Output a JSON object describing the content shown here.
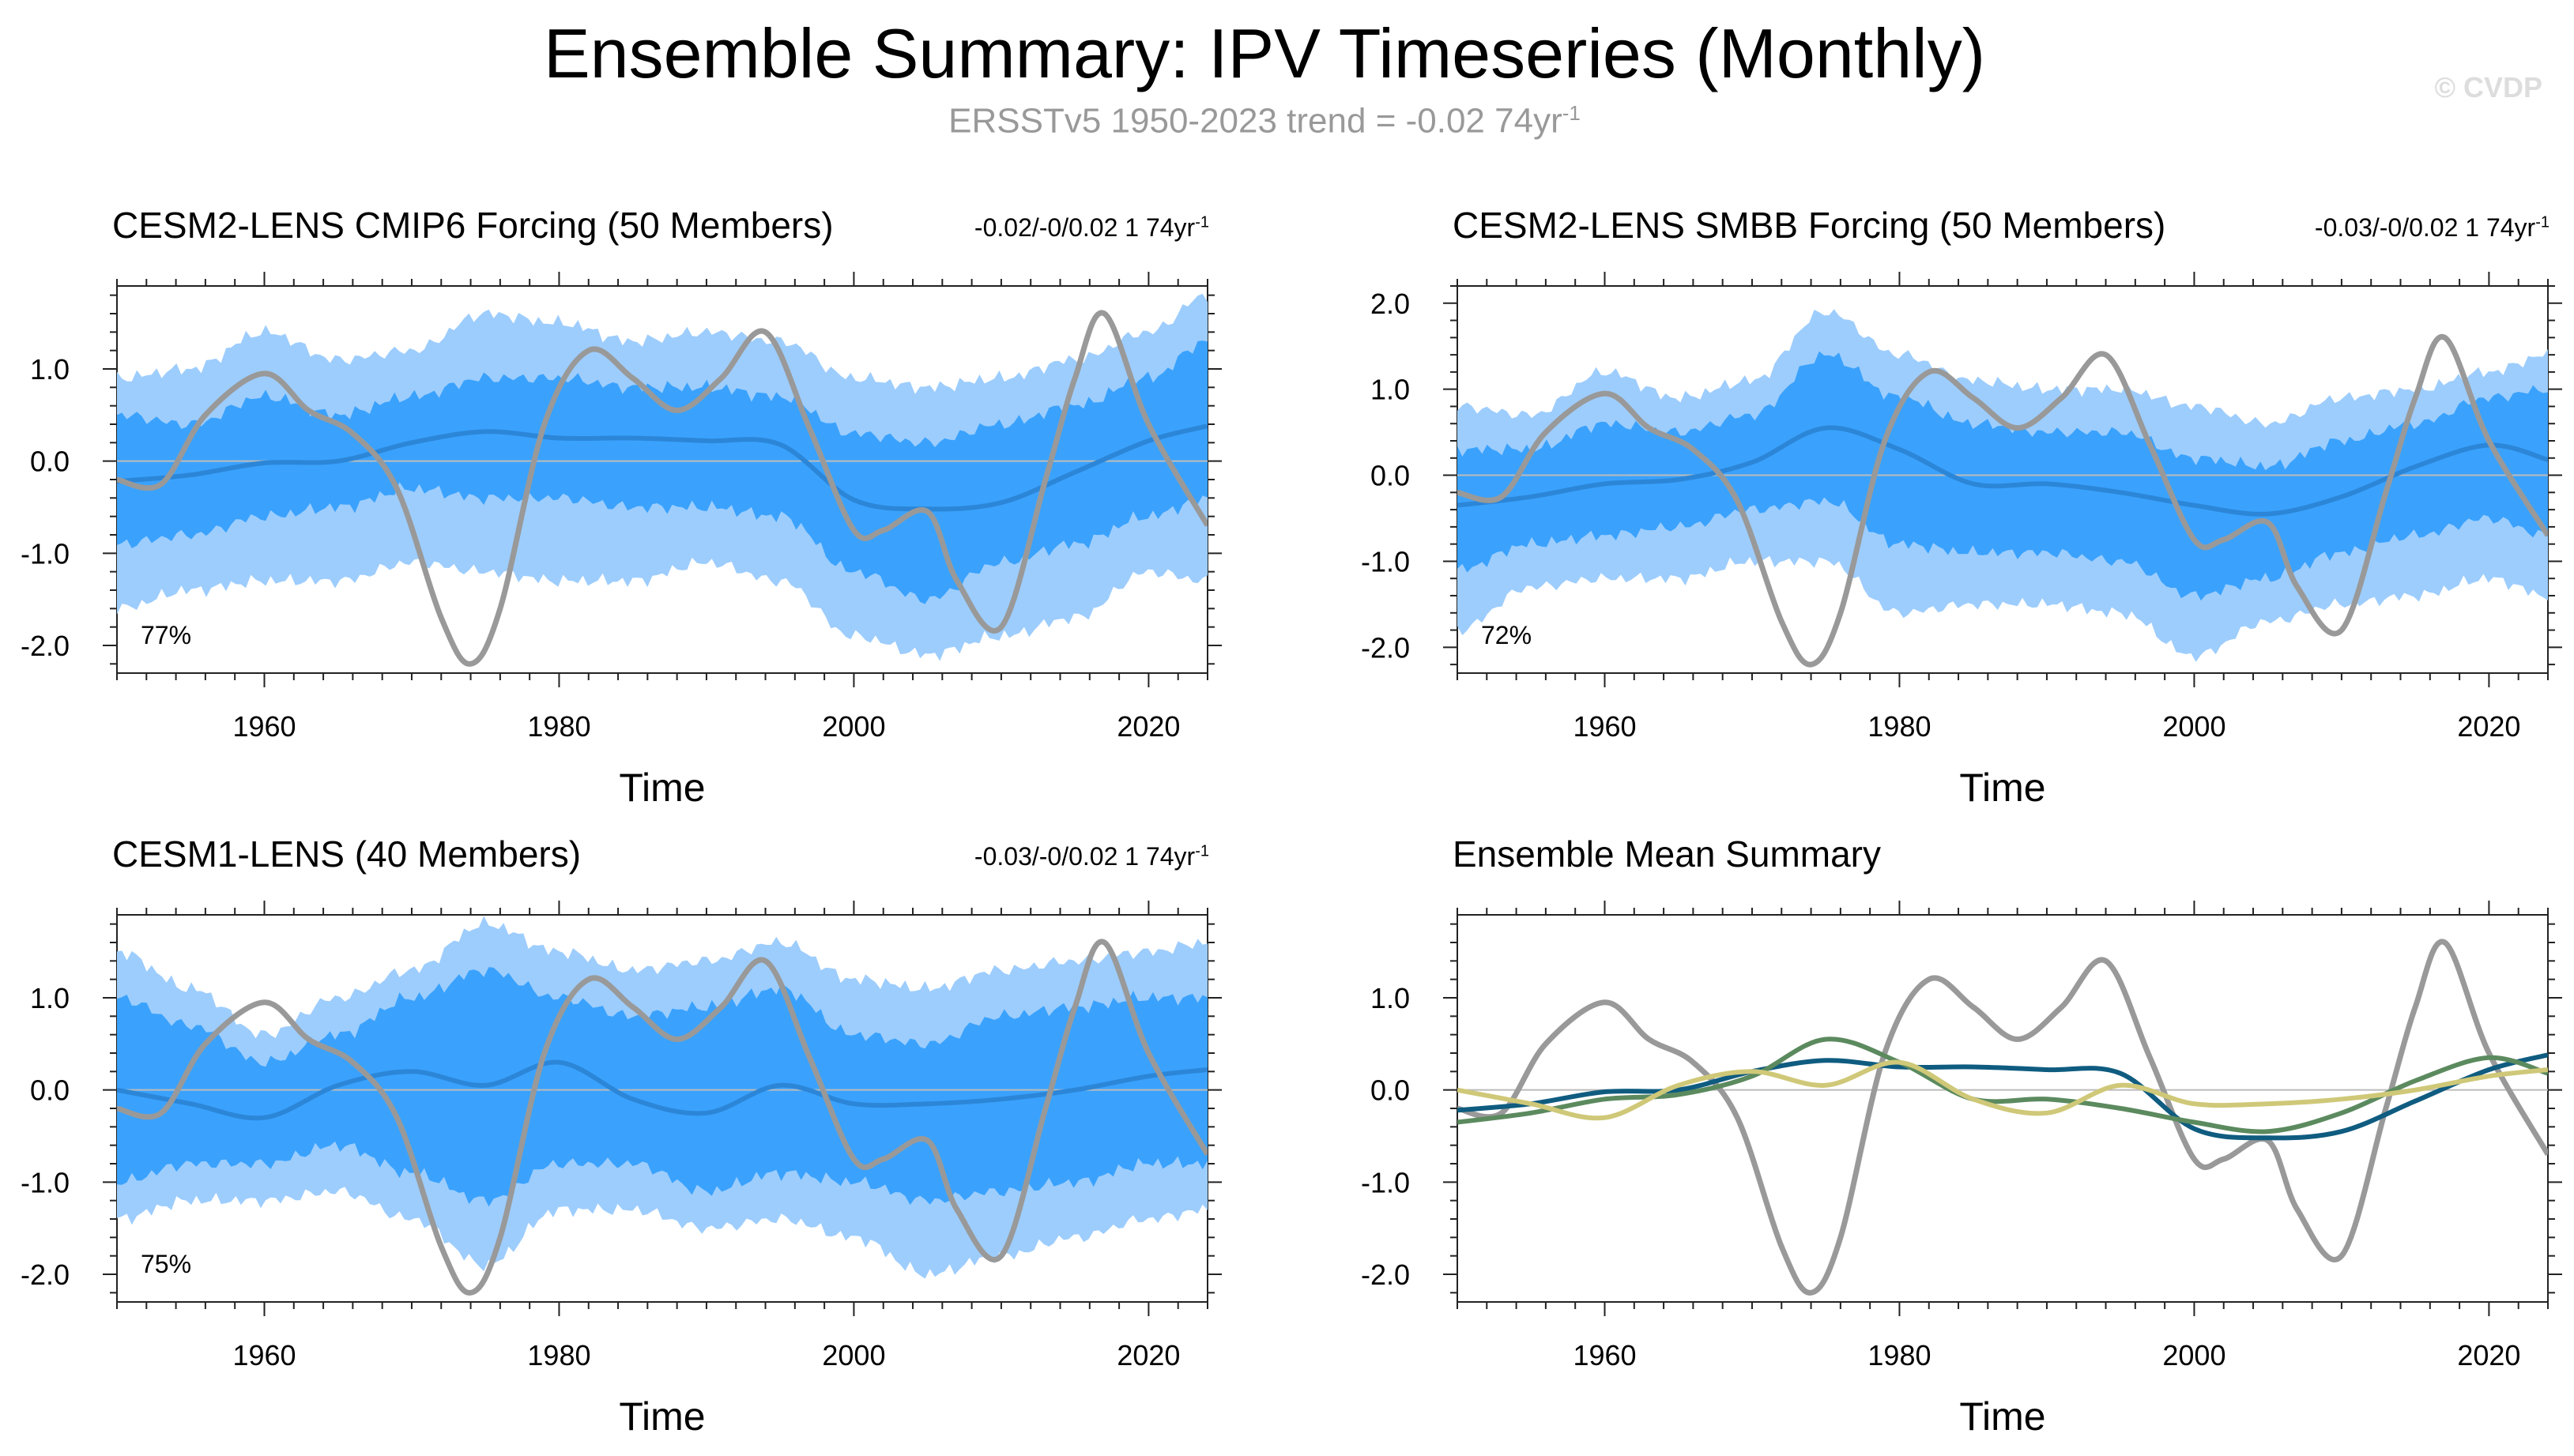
{
  "title": "Ensemble Summary: IPV Timeseries (Monthly)",
  "subtitle": {
    "text": "ERSSTv5 1950-2023 trend = -0.02 74yr",
    "superscript": "-1"
  },
  "watermark": "© CVDP",
  "colors": {
    "obs": "#999999",
    "outer_band": "#9dcdfd",
    "inner_band": "#3aa2fd",
    "ens_mean_line": "#2c86d8",
    "cmip6": "#0f5c80",
    "smbb": "#5b8a5e",
    "cesm1": "#cfc878",
    "zero_line": "#bbbbbb"
  },
  "panels": [
    {
      "id": "cmip6",
      "title": "CESM2-LENS CMIP6 Forcing (50 Members)",
      "trend": "-0.02/-0/0.02 1 74yr",
      "trend_sup": "-1",
      "percent": "77%",
      "xlabel": "Time"
    },
    {
      "id": "smbb",
      "title": "CESM2-LENS SMBB Forcing (50 Members)",
      "trend": "-0.03/-0/0.02 1 74yr",
      "trend_sup": "-1",
      "percent": "72%",
      "xlabel": "Time"
    },
    {
      "id": "cesm1",
      "title": "CESM1-LENS (40 Members)",
      "trend": "-0.03/-0/0.02 1 74yr",
      "trend_sup": "-1",
      "percent": "75%",
      "xlabel": "Time"
    },
    {
      "id": "summary",
      "title": "Ensemble Mean Summary",
      "xlabel": "Time"
    }
  ],
  "chart_data": [
    {
      "type": "area",
      "panel": "cmip6",
      "title": "CESM2-LENS CMIP6 Forcing (50 Members)",
      "xlabel": "Time",
      "ylabel": "",
      "xlim": [
        1950,
        2024
      ],
      "ylim": [
        -2.3,
        1.9
      ],
      "xticks": [
        1960,
        1980,
        2000,
        2020
      ],
      "yticks": [
        -2.0,
        -1.0,
        0.0,
        1.0
      ],
      "ytick_labels": [
        "-2.0",
        "-1.0",
        "0.0",
        "1.0"
      ],
      "x": [
        1950,
        1955,
        1960,
        1965,
        1970,
        1975,
        1980,
        1985,
        1990,
        1995,
        2000,
        2005,
        2010,
        2015,
        2020,
        2024
      ],
      "outer_upper": [
        0.9,
        1.0,
        1.4,
        1.1,
        1.2,
        1.6,
        1.5,
        1.3,
        1.4,
        1.3,
        0.9,
        0.8,
        0.9,
        1.1,
        1.4,
        1.8
      ],
      "outer_lower": [
        -1.6,
        -1.4,
        -1.3,
        -1.3,
        -1.1,
        -1.2,
        -1.3,
        -1.3,
        -1.1,
        -1.3,
        -1.9,
        -2.1,
        -1.9,
        -1.7,
        -1.2,
        -1.3
      ],
      "inner_upper": [
        0.5,
        0.4,
        0.7,
        0.5,
        0.7,
        0.9,
        0.9,
        0.8,
        0.8,
        0.7,
        0.3,
        0.2,
        0.4,
        0.6,
        0.9,
        1.3
      ],
      "inner_lower": [
        -0.9,
        -0.8,
        -0.6,
        -0.5,
        -0.3,
        -0.4,
        -0.4,
        -0.5,
        -0.5,
        -0.6,
        -1.2,
        -1.5,
        -1.1,
        -0.9,
        -0.6,
        -0.4
      ],
      "ensemble_mean": [
        -0.22,
        -0.15,
        -0.02,
        0.0,
        0.2,
        0.32,
        0.25,
        0.25,
        0.22,
        0.18,
        -0.42,
        -0.52,
        -0.45,
        -0.12,
        0.22,
        0.38
      ],
      "obs_x": [
        1950,
        1953,
        1956,
        1960,
        1963,
        1966,
        1969,
        1972,
        1974,
        1976,
        1979,
        1982,
        1985,
        1988,
        1991,
        1994,
        1997,
        2000,
        2002,
        2005,
        2007,
        2010,
        2013,
        2015,
        2017,
        2020,
        2024
      ],
      "obs": [
        -0.2,
        -0.25,
        0.5,
        0.95,
        0.55,
        0.3,
        -0.3,
        -1.7,
        -2.2,
        -1.6,
        0.4,
        1.2,
        0.9,
        0.55,
        0.9,
        1.4,
        0.35,
        -0.75,
        -0.75,
        -0.55,
        -1.3,
        -1.8,
        -0.2,
        0.9,
        1.6,
        0.4,
        -0.7
      ]
    },
    {
      "type": "area",
      "panel": "smbb",
      "title": "CESM2-LENS SMBB Forcing (50 Members)",
      "xlabel": "Time",
      "ylabel": "",
      "xlim": [
        1950,
        2024
      ],
      "ylim": [
        -2.3,
        2.2
      ],
      "xticks": [
        1960,
        1980,
        2000,
        2020
      ],
      "yticks": [
        -2.0,
        -1.0,
        0.0,
        1.0,
        2.0
      ],
      "ytick_labels": [
        "-2.0",
        "-1.0",
        "0.0",
        "1.0",
        "2.0"
      ],
      "x": [
        1950,
        1955,
        1960,
        1965,
        1970,
        1975,
        1980,
        1985,
        1990,
        1995,
        2000,
        2005,
        2010,
        2015,
        2020,
        2024
      ],
      "outer_upper": [
        0.8,
        0.7,
        1.2,
        0.9,
        1.1,
        1.9,
        1.4,
        1.1,
        1.0,
        1.0,
        0.8,
        0.6,
        0.9,
        1.0,
        1.2,
        1.4
      ],
      "outer_lower": [
        -1.8,
        -1.3,
        -1.2,
        -1.2,
        -1.0,
        -1.0,
        -1.6,
        -1.5,
        -1.5,
        -1.6,
        -2.1,
        -1.7,
        -1.5,
        -1.4,
        -1.2,
        -1.4
      ],
      "inner_upper": [
        0.3,
        0.3,
        0.6,
        0.5,
        0.7,
        1.4,
        0.9,
        0.6,
        0.5,
        0.5,
        0.2,
        0.1,
        0.4,
        0.6,
        0.9,
        1.0
      ],
      "inner_lower": [
        -1.1,
        -0.8,
        -0.7,
        -0.6,
        -0.4,
        -0.3,
        -0.8,
        -0.9,
        -0.9,
        -1.0,
        -1.4,
        -1.2,
        -0.9,
        -0.7,
        -0.5,
        -0.7
      ],
      "ensemble_mean": [
        -0.35,
        -0.25,
        -0.1,
        -0.05,
        0.15,
        0.55,
        0.3,
        -0.1,
        -0.1,
        -0.2,
        -0.35,
        -0.45,
        -0.25,
        0.1,
        0.35,
        0.18
      ],
      "obs_x": [
        1950,
        1953,
        1956,
        1960,
        1963,
        1966,
        1969,
        1972,
        1974,
        1976,
        1979,
        1982,
        1985,
        1988,
        1991,
        1994,
        1997,
        2000,
        2002,
        2005,
        2007,
        2010,
        2013,
        2015,
        2017,
        2020,
        2024
      ],
      "obs": [
        -0.2,
        -0.25,
        0.5,
        0.95,
        0.55,
        0.3,
        -0.3,
        -1.7,
        -2.2,
        -1.6,
        0.4,
        1.2,
        0.9,
        0.55,
        0.9,
        1.4,
        0.35,
        -0.75,
        -0.75,
        -0.55,
        -1.3,
        -1.8,
        -0.2,
        0.9,
        1.6,
        0.4,
        -0.7
      ]
    },
    {
      "type": "area",
      "panel": "cesm1",
      "title": "CESM1-LENS (40 Members)",
      "xlabel": "Time",
      "ylabel": "",
      "xlim": [
        1950,
        2024
      ],
      "ylim": [
        -2.3,
        1.9
      ],
      "xticks": [
        1960,
        1980,
        2000,
        2020
      ],
      "yticks": [
        -2.0,
        -1.0,
        0.0,
        1.0
      ],
      "ytick_labels": [
        "-2.0",
        "-1.0",
        "0.0",
        "1.0"
      ],
      "x": [
        1950,
        1955,
        1960,
        1965,
        1970,
        1975,
        1980,
        1985,
        1990,
        1995,
        2000,
        2005,
        2010,
        2015,
        2020,
        2024
      ],
      "outer_upper": [
        1.5,
        1.1,
        0.6,
        1.0,
        1.3,
        1.8,
        1.5,
        1.3,
        1.4,
        1.6,
        1.2,
        1.1,
        1.3,
        1.4,
        1.5,
        1.6
      ],
      "outer_lower": [
        -1.4,
        -1.2,
        -1.2,
        -1.1,
        -1.4,
        -1.9,
        -1.3,
        -1.3,
        -1.5,
        -1.4,
        -1.6,
        -2.0,
        -1.8,
        -1.6,
        -1.4,
        -1.3
      ],
      "inner_upper": [
        1.0,
        0.7,
        0.3,
        0.6,
        1.0,
        1.3,
        1.0,
        0.8,
        0.9,
        1.1,
        0.6,
        0.5,
        0.8,
        0.9,
        1.0,
        1.0
      ],
      "inner_lower": [
        -1.0,
        -0.8,
        -0.8,
        -0.6,
        -0.9,
        -1.2,
        -0.8,
        -0.8,
        -1.1,
        -0.9,
        -1.0,
        -1.2,
        -1.1,
        -1.0,
        -0.8,
        -0.8
      ],
      "ensemble_mean": [
        0.0,
        -0.15,
        -0.3,
        0.05,
        0.2,
        0.05,
        0.3,
        -0.1,
        -0.25,
        0.05,
        -0.15,
        -0.15,
        -0.1,
        0.0,
        0.15,
        0.22
      ],
      "obs_x": [
        1950,
        1953,
        1956,
        1960,
        1963,
        1966,
        1969,
        1972,
        1974,
        1976,
        1979,
        1982,
        1985,
        1988,
        1991,
        1994,
        1997,
        2000,
        2002,
        2005,
        2007,
        2010,
        2013,
        2015,
        2017,
        2020,
        2024
      ],
      "obs": [
        -0.2,
        -0.25,
        0.5,
        0.95,
        0.55,
        0.3,
        -0.3,
        -1.7,
        -2.2,
        -1.6,
        0.4,
        1.2,
        0.9,
        0.55,
        0.9,
        1.4,
        0.35,
        -0.75,
        -0.75,
        -0.55,
        -1.3,
        -1.8,
        -0.2,
        0.9,
        1.6,
        0.4,
        -0.7
      ]
    },
    {
      "type": "line",
      "panel": "summary",
      "title": "Ensemble Mean Summary",
      "xlabel": "Time",
      "ylabel": "",
      "xlim": [
        1950,
        2024
      ],
      "ylim": [
        -2.3,
        1.9
      ],
      "xticks": [
        1960,
        1980,
        2000,
        2020
      ],
      "yticks": [
        -2.0,
        -1.0,
        0.0,
        1.0
      ],
      "ytick_labels": [
        "-2.0",
        "-1.0",
        "0.0",
        "1.0"
      ],
      "x": [
        1950,
        1955,
        1960,
        1965,
        1970,
        1975,
        1980,
        1985,
        1990,
        1995,
        2000,
        2005,
        2010,
        2015,
        2020,
        2024
      ],
      "series": [
        {
          "name": "CESM2-LENS CMIP6 Forcing",
          "color_key": "cmip6",
          "values": [
            -0.22,
            -0.15,
            -0.02,
            0.0,
            0.2,
            0.32,
            0.25,
            0.25,
            0.22,
            0.18,
            -0.42,
            -0.52,
            -0.45,
            -0.12,
            0.22,
            0.38
          ]
        },
        {
          "name": "CESM2-LENS SMBB Forcing",
          "color_key": "smbb",
          "values": [
            -0.35,
            -0.25,
            -0.1,
            -0.05,
            0.15,
            0.55,
            0.3,
            -0.1,
            -0.1,
            -0.2,
            -0.35,
            -0.45,
            -0.25,
            0.1,
            0.35,
            0.18
          ]
        },
        {
          "name": "CESM1-LENS",
          "color_key": "cesm1",
          "values": [
            0.0,
            -0.15,
            -0.3,
            0.05,
            0.2,
            0.05,
            0.3,
            -0.1,
            -0.25,
            0.05,
            -0.15,
            -0.15,
            -0.1,
            0.0,
            0.15,
            0.22
          ]
        }
      ],
      "obs_x": [
        1950,
        1953,
        1956,
        1960,
        1963,
        1966,
        1969,
        1972,
        1974,
        1976,
        1979,
        1982,
        1985,
        1988,
        1991,
        1994,
        1997,
        2000,
        2002,
        2005,
        2007,
        2010,
        2013,
        2015,
        2017,
        2020,
        2024
      ],
      "obs": [
        -0.2,
        -0.25,
        0.5,
        0.95,
        0.55,
        0.3,
        -0.3,
        -1.7,
        -2.2,
        -1.6,
        0.4,
        1.2,
        0.9,
        0.55,
        0.9,
        1.4,
        0.35,
        -0.75,
        -0.75,
        -0.55,
        -1.3,
        -1.8,
        -0.2,
        0.9,
        1.6,
        0.4,
        -0.7
      ]
    }
  ]
}
